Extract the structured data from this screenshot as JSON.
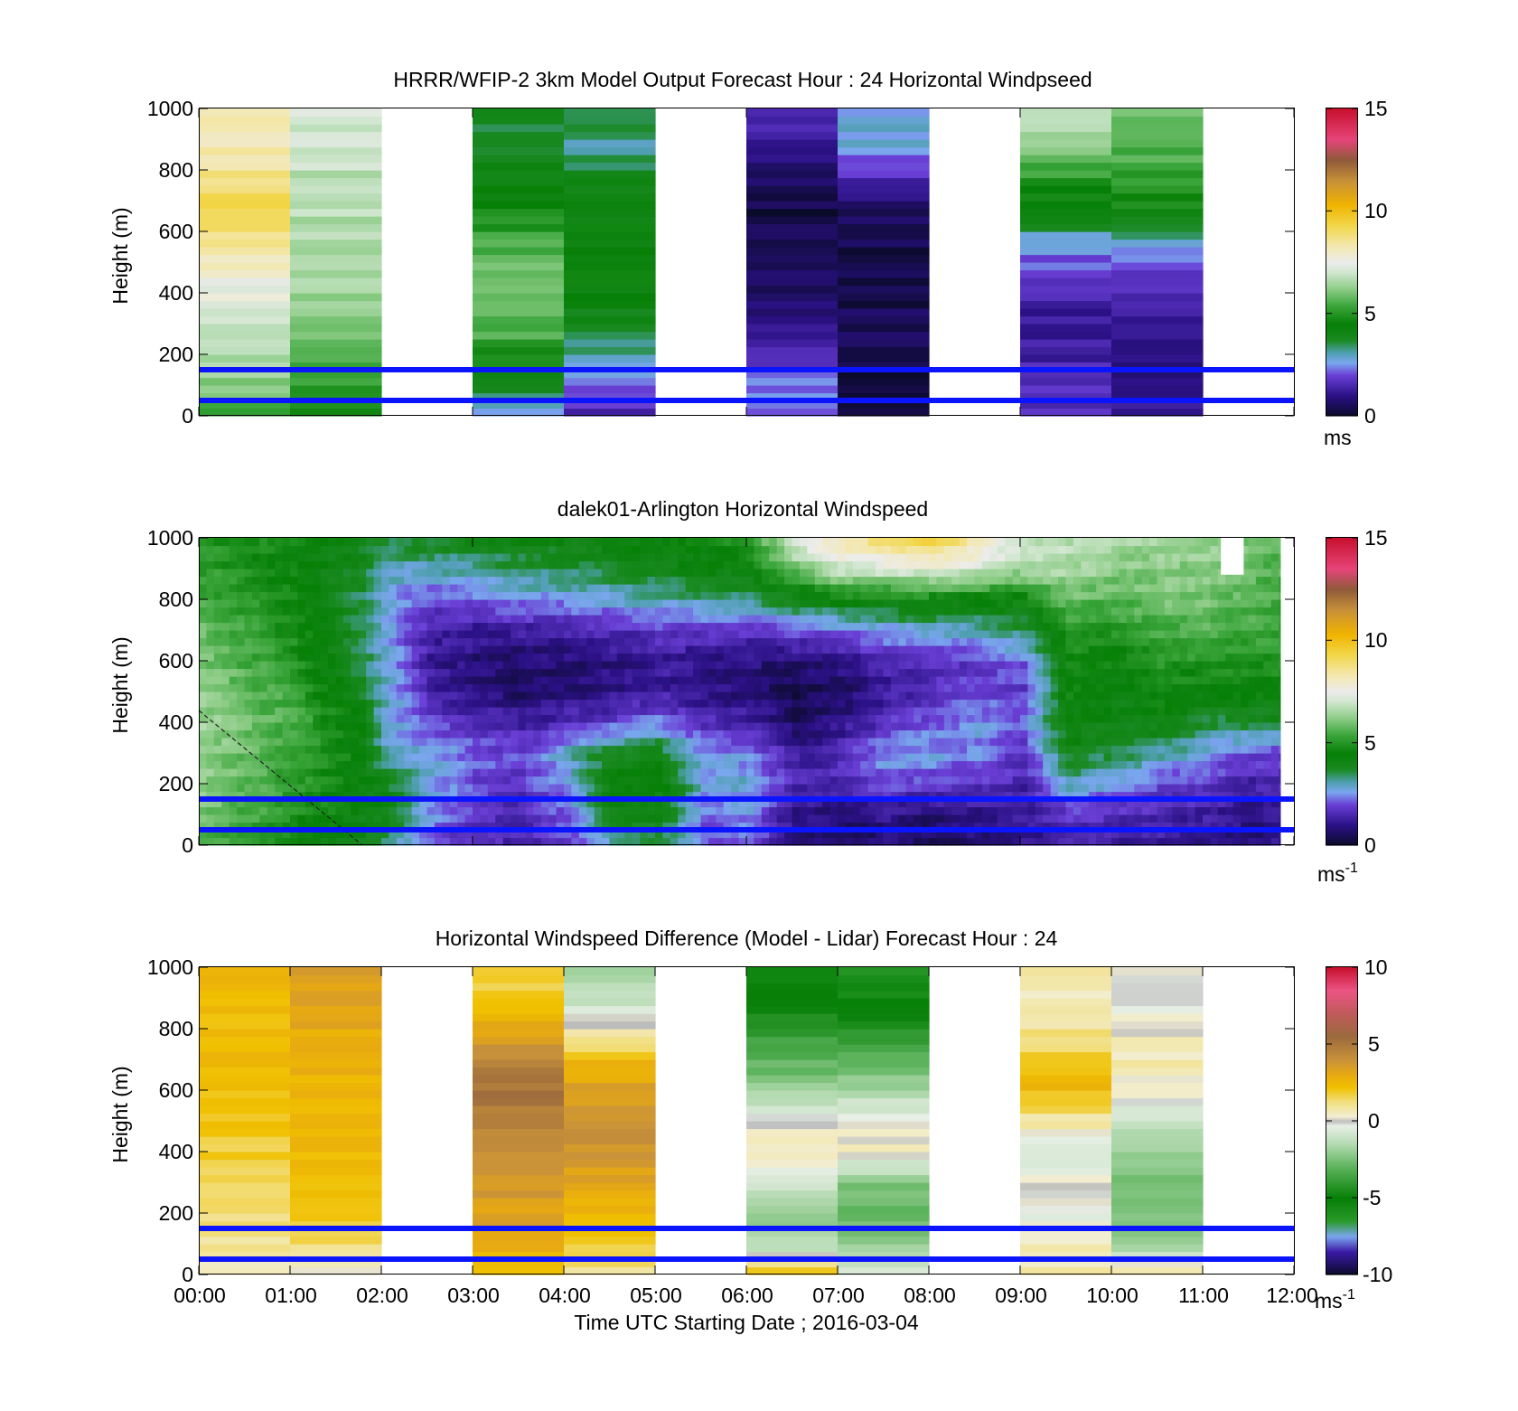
{
  "figure": {
    "xlabel": "Time UTC  Starting Date ; 2016-03-04",
    "x_ticks": [
      "00:00",
      "01:00",
      "02:00",
      "03:00",
      "04:00",
      "05:00",
      "06:00",
      "07:00",
      "08:00",
      "09:00",
      "10:00",
      "11:00",
      "12:00"
    ]
  },
  "chart_data": [
    {
      "type": "heatmap",
      "title": "HRRR/WFIP-2 3km Model Output   Forecast Hour : 24 Horizontal Windpseed",
      "ylabel": "Height (m)",
      "y_ticks": [
        "0",
        "200",
        "400",
        "600",
        "800",
        "1000"
      ],
      "xlim_hours": [
        0,
        12
      ],
      "ylim": [
        0,
        1000
      ],
      "colorbar": {
        "min": 0,
        "max": 15,
        "ticks": [
          "0",
          "5",
          "10",
          "15"
        ],
        "unit": "ms",
        "unit_sup": ""
      },
      "colormap": "speed",
      "reference_lines_m": [
        50,
        150
      ],
      "reference_line_color": "#0a14ff",
      "heights_m": [
        0,
        60,
        160,
        260,
        360,
        460,
        560,
        660,
        760,
        860,
        960
      ],
      "columns": [
        {
          "start": 0,
          "end": 1,
          "values": [
            5,
            6,
            6.4,
            6.8,
            7.3,
            7.7,
            8.5,
            9.2,
            8.8,
            8.4,
            8.2
          ]
        },
        {
          "start": 1,
          "end": 2,
          "values": [
            4.5,
            5,
            5.5,
            6,
            6.3,
            6.5,
            6.6,
            6.7,
            6.8,
            6.9,
            7
          ]
        },
        {
          "start": 3,
          "end": 4,
          "values": [
            2.2,
            3.5,
            4.5,
            5.5,
            6,
            6,
            5.5,
            4.8,
            4.2,
            3.8,
            3.7
          ]
        },
        {
          "start": 4,
          "end": 5,
          "values": [
            1.5,
            2,
            2.8,
            3.6,
            4.2,
            4.4,
            4.4,
            4.3,
            4.2,
            3,
            3.6
          ]
        },
        {
          "start": 6,
          "end": 7,
          "values": [
            2,
            2.5,
            2,
            1.2,
            0.8,
            0.6,
            0.4,
            0.3,
            0.6,
            1.2,
            1.4
          ]
        },
        {
          "start": 7,
          "end": 8,
          "values": [
            0.3,
            0.2,
            0.3,
            0.4,
            0.4,
            0.3,
            0.3,
            0.5,
            1.3,
            2.6,
            2.8
          ]
        },
        {
          "start": 9,
          "end": 10,
          "values": [
            1.5,
            1.6,
            1.5,
            1.2,
            1.3,
            1.8,
            2.6,
            4.3,
            5,
            6,
            6.8
          ]
        },
        {
          "start": 10,
          "end": 11,
          "values": [
            1.2,
            1,
            1,
            1.1,
            1.3,
            1.8,
            2.8,
            4.5,
            5,
            5.6,
            5.8
          ]
        }
      ]
    },
    {
      "type": "heatmap",
      "title": "dalek01-Arlington  Horizontal Windspeed",
      "ylabel": "Height (m)",
      "y_ticks": [
        "0",
        "200",
        "400",
        "600",
        "800",
        "1000"
      ],
      "xlim_hours": [
        0,
        12
      ],
      "ylim": [
        0,
        1000
      ],
      "colorbar": {
        "min": 0,
        "max": 15,
        "ticks": [
          "0",
          "5",
          "10",
          "15"
        ],
        "unit": "ms",
        "unit_sup": "-1"
      },
      "colormap": "speed",
      "reference_lines_m": [
        50,
        150
      ],
      "reference_line_color": "#0a14ff",
      "heights_m": [
        0,
        100,
        200,
        300,
        400,
        500,
        600,
        700,
        800,
        900,
        1000
      ],
      "data_end_hour": 11.85,
      "profile_step_hours": 0.25,
      "profiles": [
        {
          "hour": 0,
          "values": [
            5.5,
            6,
            6.2,
            6.3,
            6.4,
            6.2,
            6,
            5.8,
            5.5,
            5.2,
            5
          ]
        },
        {
          "hour": 1,
          "values": [
            4.5,
            5,
            5.2,
            5.3,
            5.5,
            5.3,
            5,
            4.8,
            4.6,
            4.5,
            4.6
          ]
        },
        {
          "hour": 1.75,
          "values": [
            4,
            4.2,
            4.3,
            4.4,
            4.2,
            3.8,
            3.5,
            3.6,
            3.5,
            3.8,
            4
          ]
        },
        {
          "hour": 2,
          "values": [
            3.5,
            4.2,
            4,
            3,
            2.8,
            3,
            2.9,
            2.6,
            2.7,
            3,
            3.8
          ]
        },
        {
          "hour": 2.5,
          "values": [
            2,
            2.5,
            2.8,
            2.7,
            2,
            1.4,
            1.2,
            1.5,
            2,
            3,
            4
          ]
        },
        {
          "hour": 3,
          "values": [
            1.5,
            1.8,
            2,
            2.2,
            1.6,
            0.9,
            0.8,
            1.2,
            2.2,
            3.2,
            4
          ]
        },
        {
          "hour": 3.5,
          "values": [
            1.5,
            1.5,
            1.8,
            2,
            1.3,
            0.6,
            0.7,
            1.3,
            2.5,
            3.5,
            4.2
          ]
        },
        {
          "hour": 4,
          "values": [
            2,
            2.2,
            2.5,
            3,
            1.6,
            0.8,
            0.8,
            1.4,
            2.6,
            3.6,
            4.2
          ]
        },
        {
          "hour": 4.5,
          "values": [
            3,
            4,
            4.5,
            3.8,
            2,
            1,
            0.9,
            1.6,
            2.8,
            3.8,
            4.4
          ]
        },
        {
          "hour": 5,
          "values": [
            3.5,
            4.2,
            4.5,
            4,
            2.4,
            1.3,
            1.2,
            1.8,
            3,
            4,
            4.5
          ]
        },
        {
          "hour": 5.5,
          "values": [
            2,
            2.2,
            2.8,
            2.5,
            1.6,
            1,
            1,
            1.8,
            3.2,
            4.2,
            4.6
          ]
        },
        {
          "hour": 6,
          "values": [
            2.2,
            2.5,
            2.8,
            2.4,
            1.4,
            0.8,
            0.9,
            1.8,
            3.4,
            4.5,
            5
          ]
        },
        {
          "hour": 6.5,
          "values": [
            0.8,
            1,
            1.6,
            1.2,
            0.6,
            0.4,
            0.8,
            2,
            4,
            6,
            7.5
          ]
        },
        {
          "hour": 7,
          "values": [
            0.6,
            0.8,
            1.5,
            1.6,
            1,
            0.6,
            1,
            2.2,
            4.5,
            7,
            8.5
          ]
        },
        {
          "hour": 7.5,
          "values": [
            0.8,
            1,
            2.2,
            2.6,
            1.8,
            1.2,
            1.5,
            2.6,
            4.5,
            7.2,
            9
          ]
        },
        {
          "hour": 8,
          "values": [
            0.5,
            0.8,
            1.8,
            2.6,
            2.2,
            1.6,
            1.6,
            2.8,
            4.6,
            7.5,
            9.5
          ]
        },
        {
          "hour": 8.5,
          "values": [
            0.8,
            1,
            1.8,
            2.4,
            2.6,
            2,
            1.9,
            3,
            4.5,
            7,
            8.5
          ]
        },
        {
          "hour": 9,
          "values": [
            1,
            1.2,
            1.4,
            1.8,
            2.2,
            1.8,
            2.2,
            3.5,
            4.6,
            6.5,
            7
          ]
        },
        {
          "hour": 9.5,
          "values": [
            1.4,
            1.8,
            3,
            4,
            4.4,
            4.6,
            4.6,
            5,
            5.8,
            6.6,
            6.8
          ]
        },
        {
          "hour": 10,
          "values": [
            1.2,
            1.6,
            2.6,
            3.5,
            4,
            4.2,
            4.5,
            5,
            5.6,
            6.2,
            6.5
          ]
        },
        {
          "hour": 10.5,
          "values": [
            1.2,
            1.5,
            2,
            3.2,
            4.2,
            4.6,
            5,
            5.5,
            6,
            6.2,
            6.4
          ]
        },
        {
          "hour": 11,
          "values": [
            1,
            1.3,
            1.8,
            2.6,
            3.6,
            4.4,
            5,
            5.6,
            6,
            6.2,
            6.4
          ]
        },
        {
          "hour": 11.5,
          "values": [
            0.8,
            1,
            1.4,
            2,
            3.6,
            4.5,
            5,
            5.4,
            5.6,
            5.8,
            6
          ]
        },
        {
          "hour": 11.85,
          "values": [
            1,
            1.2,
            1.5,
            2,
            3.8,
            4.5,
            5,
            5.2,
            5.4,
            5.6,
            5.8
          ]
        }
      ],
      "missing_blocks": [
        {
          "start": 11.2,
          "end": 11.45,
          "from_m": 880,
          "to_m": 1000
        }
      ],
      "annotation": "dashed diagonal line from (0:00, ~430 m) to (~1:45, 0 m)"
    },
    {
      "type": "heatmap",
      "title": "Horizontal Windspeed Difference (Model - Lidar) Forecast Hour : 24",
      "ylabel": "Height (m)",
      "y_ticks": [
        "0",
        "200",
        "400",
        "600",
        "800",
        "1000"
      ],
      "xlim_hours": [
        0,
        12
      ],
      "ylim": [
        0,
        1000
      ],
      "colorbar": {
        "min": -10,
        "max": 10,
        "ticks": [
          "-10",
          "-5",
          "0",
          "5",
          "10"
        ],
        "unit": "ms",
        "unit_sup": "-1"
      },
      "colormap": "difference",
      "reference_lines_m": [
        50,
        150
      ],
      "reference_line_color": "#0a14ff",
      "heights_m": [
        0,
        100,
        200,
        300,
        400,
        500,
        600,
        700,
        800,
        900,
        1000
      ],
      "columns": [
        {
          "start": 0,
          "end": 1,
          "values": [
            0.5,
            1,
            1.2,
            1.6,
            1.8,
            2,
            2.2,
            2.3,
            2.4,
            2.5,
            2.6
          ]
        },
        {
          "start": 1,
          "end": 2,
          "values": [
            0,
            1.4,
            2.2,
            2.3,
            2.4,
            2.5,
            2.6,
            2.8,
            3,
            3.2,
            3.4
          ]
        },
        {
          "start": 3,
          "end": 4,
          "values": [
            2,
            3,
            3.4,
            3.8,
            4.2,
            4.6,
            5.2,
            4.6,
            3,
            2,
            1.5
          ]
        },
        {
          "start": 4,
          "end": 5,
          "values": [
            1,
            2,
            2.5,
            3.2,
            3.8,
            4,
            3.4,
            2.4,
            0.4,
            -1.2,
            -1.8
          ]
        },
        {
          "start": 6,
          "end": 7,
          "values": [
            2.5,
            -1.5,
            -2,
            -0.8,
            0.8,
            0,
            -2,
            -3,
            -4,
            -5,
            -5.5
          ]
        },
        {
          "start": 7,
          "end": 8,
          "values": [
            -0.5,
            -2,
            -3,
            -2.5,
            0.5,
            0,
            -1.8,
            -3,
            -4.5,
            -5.5,
            -6
          ]
        },
        {
          "start": 9,
          "end": 10,
          "values": [
            0.6,
            0.5,
            -0.3,
            0.3,
            -1,
            0.8,
            2.4,
            2,
            1,
            0.4,
            1
          ]
        },
        {
          "start": 10,
          "end": 11,
          "values": [
            1.2,
            -2,
            -2.3,
            -2.6,
            -2,
            -1,
            0.4,
            0.6,
            0.2,
            -0.2,
            0
          ]
        }
      ]
    }
  ]
}
